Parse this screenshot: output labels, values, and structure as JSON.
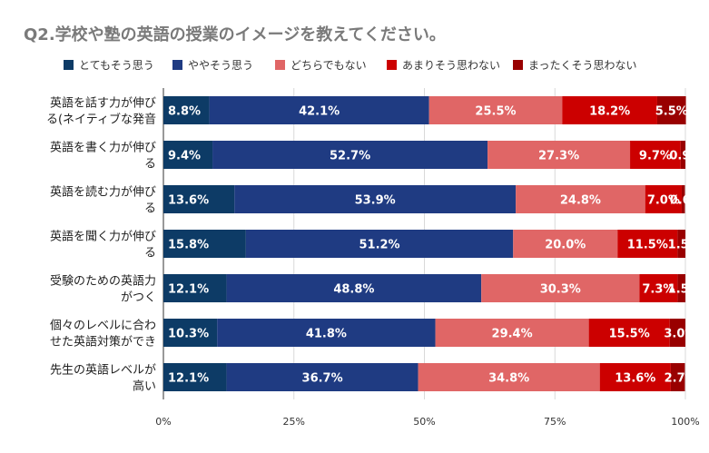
{
  "chart_data": {
    "type": "bar",
    "orientation": "horizontal",
    "stacked": true,
    "title": "Q2.学校や塾の英語の授業のイメージを教えてください。",
    "categories": [
      [
        "英語を話す力が伸び",
        "る(ネイティブな発音"
      ],
      [
        "英語を書く力が伸び",
        "る"
      ],
      [
        "英語を読む力が伸び",
        "る"
      ],
      [
        "英語を聞く力が伸び",
        "る"
      ],
      [
        "受験のための英語力",
        "がつく"
      ],
      [
        "個々のレベルに合わ",
        "せた英語対策ができ"
      ],
      [
        "先生の英語レベルが",
        "高い"
      ]
    ],
    "series": [
      {
        "name": "とてもそう思う",
        "color": "#0d3b66",
        "values": [
          8.8,
          9.4,
          13.6,
          15.8,
          12.1,
          10.3,
          12.1
        ]
      },
      {
        "name": "ややそう思う",
        "color": "#1f3b82",
        "values": [
          42.1,
          52.7,
          53.9,
          51.2,
          48.8,
          41.8,
          36.7
        ]
      },
      {
        "name": "どちらでもない",
        "color": "#e06666",
        "values": [
          25.5,
          27.3,
          24.8,
          20.0,
          30.3,
          29.4,
          34.8
        ]
      },
      {
        "name": "あまりそう思わない",
        "color": "#cc0000",
        "values": [
          18.2,
          9.7,
          7.0,
          11.5,
          7.3,
          15.5,
          13.6
        ]
      },
      {
        "name": "まったくそう思わない",
        "color": "#990000",
        "values": [
          5.5,
          0.9,
          0.6,
          1.5,
          1.5,
          3.0,
          2.7
        ]
      }
    ],
    "xlim": [
      0,
      100
    ],
    "xticks": [
      "0%",
      "25%",
      "50%",
      "75%",
      "100%"
    ],
    "legend_position": "top",
    "grid": true
  }
}
